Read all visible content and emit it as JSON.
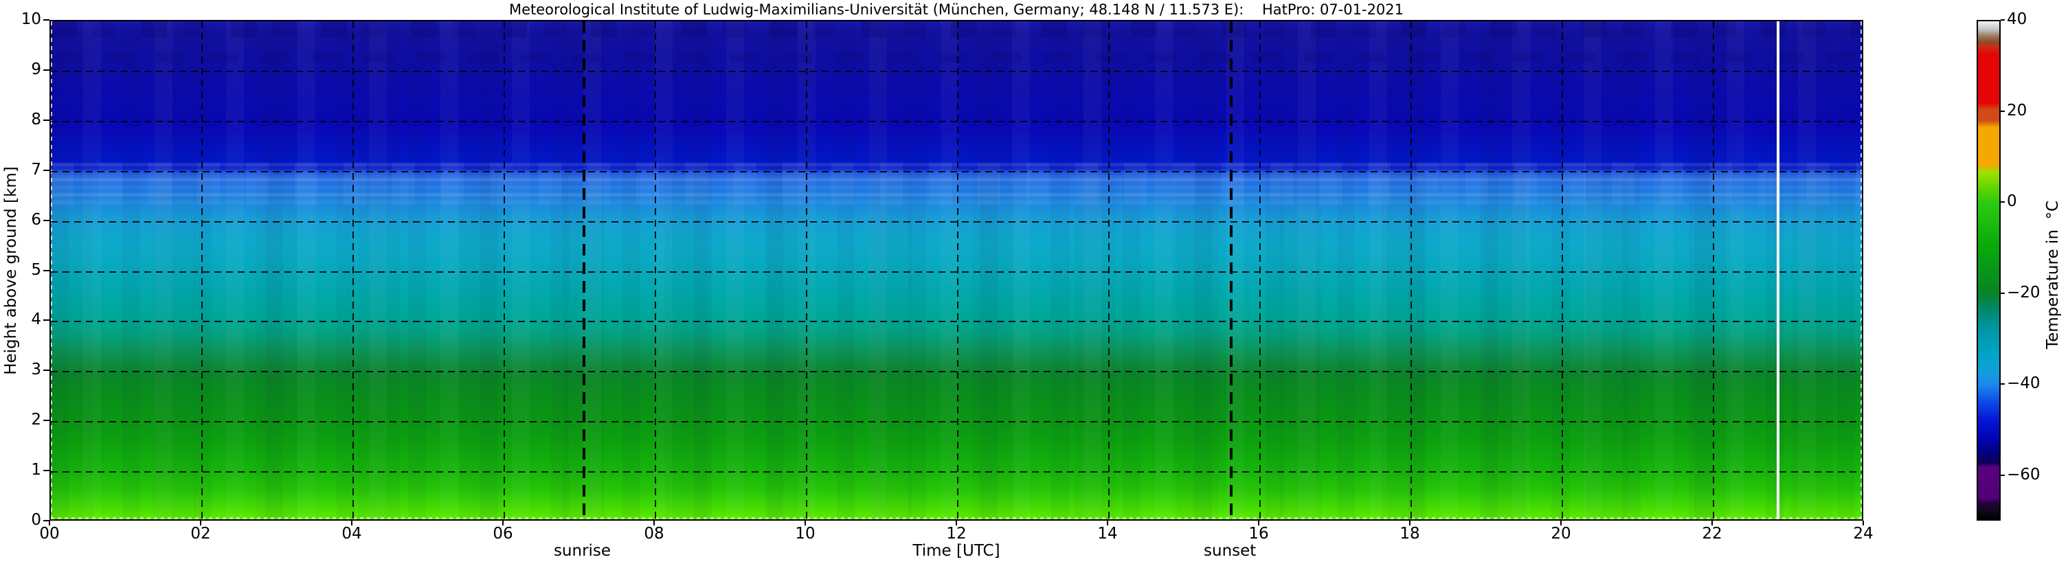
{
  "title": "Meteorological Institute of Ludwig-Maximilians-Universität (München, Germany; 48.148 N / 11.573 E):    HatPro: 07-01-2021",
  "x_axis": {
    "label": "Time [UTC]",
    "ticks": [
      "00",
      "02",
      "04",
      "06",
      "08",
      "10",
      "12",
      "14",
      "16",
      "18",
      "20",
      "22",
      "24"
    ],
    "range_hours": [
      0,
      24
    ]
  },
  "y_axis": {
    "label": "Height above ground [km]",
    "ticks": [
      "0",
      "1",
      "2",
      "3",
      "4",
      "5",
      "6",
      "7",
      "8",
      "9",
      "10"
    ],
    "range_km": [
      0,
      10
    ]
  },
  "annotations": {
    "sunrise_label": "sunrise",
    "sunset_label": "sunset",
    "sunrise_time_utc": 7.05,
    "sunset_time_utc": 15.62,
    "white_marker_time_utc": 22.85
  },
  "colorbar": {
    "label": "Temperature in  °C",
    "tick_labels": [
      "40",
      "20",
      "0",
      "−20",
      "−40",
      "−60"
    ],
    "tick_values": [
      40,
      20,
      0,
      -20,
      -40,
      -60
    ],
    "min_c": -70,
    "max_c": 40,
    "stops": [
      "#f2f2f2 0%",
      "#c6c6c6 1.6%",
      "#9d7f62 2.9%",
      "#8f4a2e 4.1%",
      "#cf2a0e 5.2%",
      "#e60505 6.6%",
      "#e60505 16.4%",
      "#d24a18 17.8%",
      "#d24a18 19.9%",
      "#f6a700 21.3%",
      "#f6a700 28.8%",
      "#a2df00 30.3%",
      "#55d400 34%",
      "#2bca12 36.6%",
      "#09aa09 45%",
      "#078426 54.6%",
      "#00886e 58%",
      "#0097a6 62%",
      "#00a4c8 67%",
      "#10a0dc 70.5%",
      "#1f86ec 73%",
      "#0d52e8 76%",
      "#0416d6 80%",
      "#0202b2 84%",
      "#010178 87%",
      "#0d0056 88.8%",
      "#5a0080 89.5%",
      "#520076 95.8%",
      "#2a0040 96.6%",
      "#140822 98%",
      "#000000 100%"
    ]
  },
  "plot_gradient_stops": [
    "#1a17ae 0%",
    "#12119e 2%",
    "#100fa0 5%",
    "#0d0ca6 10%",
    "#0a0aad 15%",
    "#0808b4 21%",
    "#0413c0 26%",
    "#0317c6 28.5%",
    "#0a24ce 29.6%",
    "#1443d8 30.2%",
    "#2a69e2 31%",
    "#1f74e2 33%",
    "#1d88de 36.5%",
    "#16a0d4 40%",
    "#0ea9c9 45%",
    "#07a9bd 50%",
    "#01a8a9 55%",
    "#00a795 60%",
    "#05a17e 63%",
    "#0c9659 66%",
    "#0d8b3b 69%",
    "#0b8629 71%",
    "#098e1b 75%",
    "#0a9614 80%",
    "#0ea30e 85%",
    "#15b40c 90%",
    "#26c407 94%",
    "#3fd804 97%",
    "#52e402 99%",
    "#60ec00 100%"
  ],
  "chart_data": {
    "type": "heatmap",
    "title": "Meteorological Institute of Ludwig-Maximilians-Universität (München, Germany; 48.148 N / 11.573 E):    HatPro: 07-01-2021",
    "instrument": "HatPro",
    "date": "07-01-2021",
    "xlabel": "Time [UTC]",
    "ylabel": "Height above ground [km]",
    "x_range": [
      0,
      24
    ],
    "y_range": [
      0,
      10
    ],
    "x_ticks": [
      0,
      2,
      4,
      6,
      8,
      10,
      12,
      14,
      16,
      18,
      20,
      22,
      24
    ],
    "y_ticks": [
      0,
      1,
      2,
      3,
      4,
      5,
      6,
      7,
      8,
      9,
      10
    ],
    "colorbar_label": "Temperature in  °C",
    "colorbar_range_c": [
      -70,
      40
    ],
    "colorbar_ticks_c": [
      40,
      20,
      0,
      -20,
      -40,
      -60
    ],
    "grid": "dashed black gridlines every 2 h and every 1 km",
    "pattern": "horizontally stratified temperature field, nearly constant over the 24 h period; temperature decreases with height",
    "profile_heights_km": [
      0,
      0.5,
      1,
      1.5,
      2,
      2.5,
      3,
      3.5,
      4,
      4.5,
      5,
      5.5,
      6,
      6.5,
      7,
      7.5,
      8,
      8.5,
      9,
      9.5,
      10
    ],
    "profile_temperature_c": [
      2,
      -3,
      -7,
      -10,
      -13,
      -16,
      -19,
      -23,
      -26,
      -29,
      -32,
      -34,
      -36,
      -39,
      -42,
      -45,
      -48,
      -50,
      -52,
      -53,
      -54
    ],
    "events": {
      "sunrise_utc": "07:03",
      "sunset_utc": "15:37",
      "white_marker_utc": "22:51"
    },
    "legend_position": "right colorbar"
  }
}
